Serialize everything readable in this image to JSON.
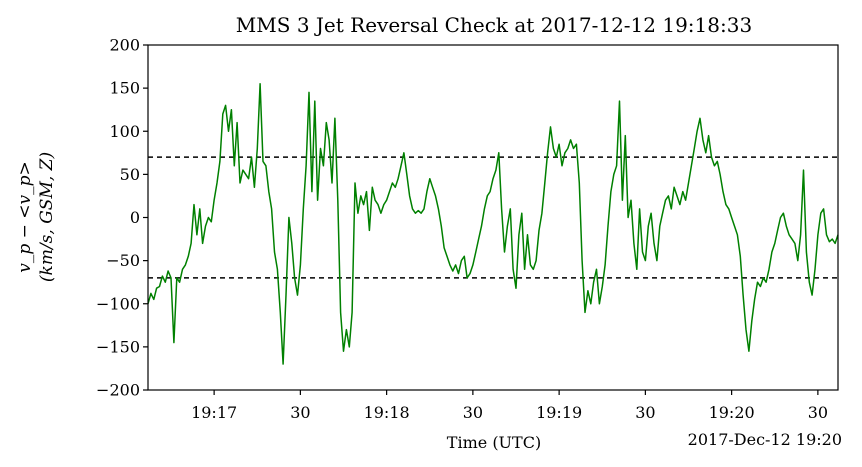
{
  "chart_data": {
    "type": "line",
    "title": "MMS 3 Jet Reversal Check at 2017-12-12 19:18:33",
    "xlabel": "Time (UTC)",
    "ylabel_line1": "v_p − <v_p>",
    "ylabel_line2": "(km/s, GSM, Z)",
    "x_offset_label": "2017-Dec-12 19:20",
    "xlim": [
      "19:16:37",
      "19:20:37"
    ],
    "ylim": [
      -200,
      200
    ],
    "y_ticks": [
      -200,
      -150,
      -100,
      -50,
      0,
      50,
      100,
      150,
      200
    ],
    "x_ticks": [
      {
        "t": "19:17:00",
        "label": "19:17"
      },
      {
        "t": "19:17:30",
        "label": "30"
      },
      {
        "t": "19:18:00",
        "label": "19:18"
      },
      {
        "t": "19:18:30",
        "label": "30"
      },
      {
        "t": "19:19:00",
        "label": "19:19"
      },
      {
        "t": "19:19:30",
        "label": "30"
      },
      {
        "t": "19:20:00",
        "label": "19:20"
      },
      {
        "t": "19:20:30",
        "label": "30"
      }
    ],
    "reference_lines": [
      70,
      -70
    ],
    "series": [
      {
        "color": "#008000",
        "points": [
          [
            "19:16:37",
            -100
          ],
          [
            "19:16:38",
            -88
          ],
          [
            "19:16:39",
            -95
          ],
          [
            "19:16:40",
            -82
          ],
          [
            "19:16:41",
            -80
          ],
          [
            "19:16:42",
            -68
          ],
          [
            "19:16:43",
            -75
          ],
          [
            "19:16:44",
            -62
          ],
          [
            "19:16:45",
            -70
          ],
          [
            "19:16:46",
            -145
          ],
          [
            "19:16:47",
            -70
          ],
          [
            "19:16:48",
            -75
          ],
          [
            "19:16:49",
            -60
          ],
          [
            "19:16:50",
            -55
          ],
          [
            "19:16:51",
            -45
          ],
          [
            "19:16:52",
            -30
          ],
          [
            "19:16:53",
            15
          ],
          [
            "19:16:54",
            -20
          ],
          [
            "19:16:55",
            10
          ],
          [
            "19:16:56",
            -30
          ],
          [
            "19:16:57",
            -10
          ],
          [
            "19:16:58",
            0
          ],
          [
            "19:16:59",
            -5
          ],
          [
            "19:17:00",
            20
          ],
          [
            "19:17:01",
            40
          ],
          [
            "19:17:02",
            65
          ],
          [
            "19:17:03",
            120
          ],
          [
            "19:17:04",
            130
          ],
          [
            "19:17:05",
            100
          ],
          [
            "19:17:06",
            125
          ],
          [
            "19:17:07",
            60
          ],
          [
            "19:17:08",
            110
          ],
          [
            "19:17:09",
            40
          ],
          [
            "19:17:10",
            55
          ],
          [
            "19:17:11",
            50
          ],
          [
            "19:17:12",
            45
          ],
          [
            "19:17:13",
            70
          ],
          [
            "19:17:14",
            35
          ],
          [
            "19:17:15",
            80
          ],
          [
            "19:17:16",
            155
          ],
          [
            "19:17:17",
            65
          ],
          [
            "19:17:18",
            60
          ],
          [
            "19:17:19",
            30
          ],
          [
            "19:17:20",
            10
          ],
          [
            "19:17:21",
            -40
          ],
          [
            "19:17:22",
            -60
          ],
          [
            "19:17:23",
            -110
          ],
          [
            "19:17:24",
            -170
          ],
          [
            "19:17:25",
            -90
          ],
          [
            "19:17:26",
            0
          ],
          [
            "19:17:27",
            -30
          ],
          [
            "19:17:28",
            -70
          ],
          [
            "19:17:29",
            -90
          ],
          [
            "19:17:30",
            -55
          ],
          [
            "19:17:31",
            10
          ],
          [
            "19:17:32",
            60
          ],
          [
            "19:17:33",
            145
          ],
          [
            "19:17:34",
            30
          ],
          [
            "19:17:35",
            135
          ],
          [
            "19:17:36",
            20
          ],
          [
            "19:17:37",
            80
          ],
          [
            "19:17:38",
            60
          ],
          [
            "19:17:39",
            110
          ],
          [
            "19:17:40",
            90
          ],
          [
            "19:17:41",
            40
          ],
          [
            "19:17:42",
            115
          ],
          [
            "19:17:43",
            20
          ],
          [
            "19:17:44",
            -110
          ],
          [
            "19:17:45",
            -155
          ],
          [
            "19:17:46",
            -130
          ],
          [
            "19:17:47",
            -150
          ],
          [
            "19:17:48",
            -110
          ],
          [
            "19:17:49",
            40
          ],
          [
            "19:17:50",
            5
          ],
          [
            "19:17:51",
            25
          ],
          [
            "19:17:52",
            15
          ],
          [
            "19:17:53",
            30
          ],
          [
            "19:17:54",
            -15
          ],
          [
            "19:17:55",
            35
          ],
          [
            "19:17:56",
            20
          ],
          [
            "19:17:57",
            15
          ],
          [
            "19:17:58",
            5
          ],
          [
            "19:17:59",
            15
          ],
          [
            "19:18:00",
            20
          ],
          [
            "19:18:01",
            30
          ],
          [
            "19:18:02",
            40
          ],
          [
            "19:18:03",
            35
          ],
          [
            "19:18:04",
            45
          ],
          [
            "19:18:05",
            60
          ],
          [
            "19:18:06",
            75
          ],
          [
            "19:18:07",
            50
          ],
          [
            "19:18:08",
            25
          ],
          [
            "19:18:09",
            10
          ],
          [
            "19:18:10",
            5
          ],
          [
            "19:18:11",
            8
          ],
          [
            "19:18:12",
            5
          ],
          [
            "19:18:13",
            10
          ],
          [
            "19:18:14",
            30
          ],
          [
            "19:18:15",
            45
          ],
          [
            "19:18:16",
            35
          ],
          [
            "19:18:17",
            25
          ],
          [
            "19:18:18",
            10
          ],
          [
            "19:18:19",
            -10
          ],
          [
            "19:18:20",
            -35
          ],
          [
            "19:18:21",
            -45
          ],
          [
            "19:18:22",
            -55
          ],
          [
            "19:18:23",
            -62
          ],
          [
            "19:18:24",
            -55
          ],
          [
            "19:18:25",
            -65
          ],
          [
            "19:18:26",
            -50
          ],
          [
            "19:18:27",
            -45
          ],
          [
            "19:18:28",
            -70
          ],
          [
            "19:18:29",
            -65
          ],
          [
            "19:18:30",
            -55
          ],
          [
            "19:18:31",
            -40
          ],
          [
            "19:18:32",
            -25
          ],
          [
            "19:18:33",
            -10
          ],
          [
            "19:18:34",
            10
          ],
          [
            "19:18:35",
            25
          ],
          [
            "19:18:36",
            30
          ],
          [
            "19:18:37",
            45
          ],
          [
            "19:18:38",
            55
          ],
          [
            "19:18:39",
            75
          ],
          [
            "19:18:40",
            10
          ],
          [
            "19:18:41",
            -40
          ],
          [
            "19:18:42",
            -10
          ],
          [
            "19:18:43",
            10
          ],
          [
            "19:18:44",
            -60
          ],
          [
            "19:18:45",
            -82
          ],
          [
            "19:18:46",
            -20
          ],
          [
            "19:18:47",
            5
          ],
          [
            "19:18:48",
            -60
          ],
          [
            "19:18:49",
            -20
          ],
          [
            "19:18:50",
            -55
          ],
          [
            "19:18:51",
            -60
          ],
          [
            "19:18:52",
            -50
          ],
          [
            "19:18:53",
            -15
          ],
          [
            "19:18:54",
            5
          ],
          [
            "19:18:55",
            40
          ],
          [
            "19:18:56",
            75
          ],
          [
            "19:18:57",
            105
          ],
          [
            "19:18:58",
            80
          ],
          [
            "19:18:59",
            70
          ],
          [
            "19:19:00",
            85
          ],
          [
            "19:19:01",
            60
          ],
          [
            "19:19:02",
            75
          ],
          [
            "19:19:03",
            80
          ],
          [
            "19:19:04",
            90
          ],
          [
            "19:19:05",
            80
          ],
          [
            "19:19:06",
            85
          ],
          [
            "19:19:07",
            40
          ],
          [
            "19:19:08",
            -50
          ],
          [
            "19:19:09",
            -110
          ],
          [
            "19:19:10",
            -85
          ],
          [
            "19:19:11",
            -100
          ],
          [
            "19:19:12",
            -75
          ],
          [
            "19:19:13",
            -60
          ],
          [
            "19:19:14",
            -100
          ],
          [
            "19:19:15",
            -80
          ],
          [
            "19:19:16",
            -55
          ],
          [
            "19:19:17",
            -10
          ],
          [
            "19:19:18",
            30
          ],
          [
            "19:19:19",
            50
          ],
          [
            "19:19:20",
            60
          ],
          [
            "19:19:21",
            135
          ],
          [
            "19:19:22",
            20
          ],
          [
            "19:19:23",
            95
          ],
          [
            "19:19:24",
            0
          ],
          [
            "19:19:25",
            20
          ],
          [
            "19:19:26",
            -30
          ],
          [
            "19:19:27",
            -60
          ],
          [
            "19:19:28",
            10
          ],
          [
            "19:19:29",
            -40
          ],
          [
            "19:19:30",
            -50
          ],
          [
            "19:19:31",
            -10
          ],
          [
            "19:19:32",
            5
          ],
          [
            "19:19:33",
            -30
          ],
          [
            "19:19:34",
            -50
          ],
          [
            "19:19:35",
            -10
          ],
          [
            "19:19:36",
            5
          ],
          [
            "19:19:37",
            20
          ],
          [
            "19:19:38",
            25
          ],
          [
            "19:19:39",
            10
          ],
          [
            "19:19:40",
            35
          ],
          [
            "19:19:41",
            25
          ],
          [
            "19:19:42",
            15
          ],
          [
            "19:19:43",
            30
          ],
          [
            "19:19:44",
            20
          ],
          [
            "19:19:45",
            40
          ],
          [
            "19:19:46",
            60
          ],
          [
            "19:19:47",
            80
          ],
          [
            "19:19:48",
            100
          ],
          [
            "19:19:49",
            115
          ],
          [
            "19:19:50",
            90
          ],
          [
            "19:19:51",
            75
          ],
          [
            "19:19:52",
            95
          ],
          [
            "19:19:53",
            70
          ],
          [
            "19:19:54",
            60
          ],
          [
            "19:19:55",
            65
          ],
          [
            "19:19:56",
            50
          ],
          [
            "19:19:57",
            30
          ],
          [
            "19:19:58",
            15
          ],
          [
            "19:19:59",
            10
          ],
          [
            "19:20:00",
            0
          ],
          [
            "19:20:01",
            -10
          ],
          [
            "19:20:02",
            -20
          ],
          [
            "19:20:03",
            -45
          ],
          [
            "19:20:04",
            -90
          ],
          [
            "19:20:05",
            -130
          ],
          [
            "19:20:06",
            -155
          ],
          [
            "19:20:07",
            -120
          ],
          [
            "19:20:08",
            -95
          ],
          [
            "19:20:09",
            -75
          ],
          [
            "19:20:10",
            -80
          ],
          [
            "19:20:11",
            -70
          ],
          [
            "19:20:12",
            -75
          ],
          [
            "19:20:13",
            -60
          ],
          [
            "19:20:14",
            -40
          ],
          [
            "19:20:15",
            -30
          ],
          [
            "19:20:16",
            -15
          ],
          [
            "19:20:17",
            0
          ],
          [
            "19:20:18",
            5
          ],
          [
            "19:20:19",
            -10
          ],
          [
            "19:20:20",
            -20
          ],
          [
            "19:20:21",
            -25
          ],
          [
            "19:20:22",
            -30
          ],
          [
            "19:20:23",
            -50
          ],
          [
            "19:20:24",
            -20
          ],
          [
            "19:20:25",
            55
          ],
          [
            "19:20:26",
            -40
          ],
          [
            "19:20:27",
            -75
          ],
          [
            "19:20:28",
            -90
          ],
          [
            "19:20:29",
            -60
          ],
          [
            "19:20:30",
            -20
          ],
          [
            "19:20:31",
            5
          ],
          [
            "19:20:32",
            10
          ],
          [
            "19:20:33",
            -20
          ],
          [
            "19:20:34",
            -28
          ],
          [
            "19:20:35",
            -25
          ],
          [
            "19:20:36",
            -30
          ],
          [
            "19:20:37",
            -20
          ]
        ]
      }
    ]
  }
}
